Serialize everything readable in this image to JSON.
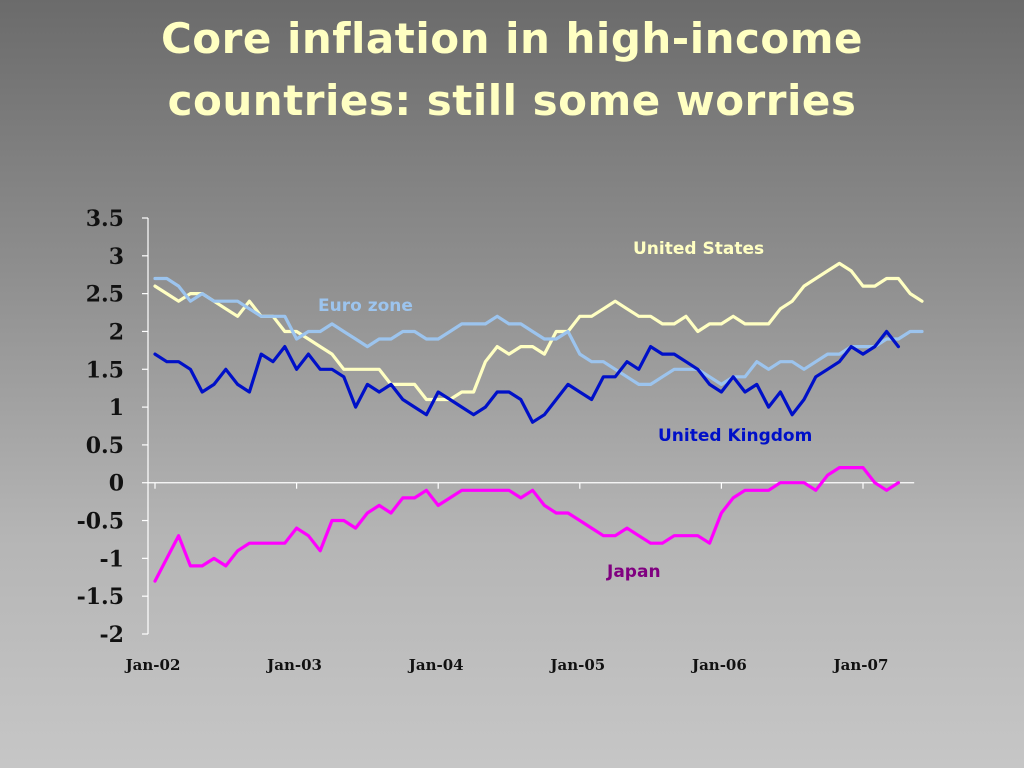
{
  "title": {
    "line1": "Core inflation in high-income",
    "line2": "countries: still some worries"
  },
  "colors": {
    "title": "#ffffc2",
    "us": "#ffffc2",
    "euro": "#9cc4ee",
    "uk": "#0010c8",
    "japan": "#ff00ff",
    "japan_label": "#800080",
    "uk_label": "#0010c8"
  },
  "chart_data": {
    "type": "line",
    "title": "Core inflation in high-income countries: still some worries",
    "xlabel": "",
    "ylabel": "",
    "ylim": [
      -2,
      3.5
    ],
    "yticks": [
      "3.5",
      "3",
      "2.5",
      "2",
      "1.5",
      "1",
      "0.5",
      "0",
      "-0.5",
      "-1",
      "-1.5",
      "-2"
    ],
    "ytick_values": [
      3.5,
      3,
      2.5,
      2,
      1.5,
      1,
      0.5,
      0,
      -0.5,
      -1,
      -1.5,
      -2
    ],
    "xticks": [
      "Jan-02",
      "Jan-03",
      "Jan-04",
      "Jan-05",
      "Jan-06",
      "Jan-07"
    ],
    "x_start": "Jan-02",
    "x_end": "Apr-07",
    "grid": false,
    "series": [
      {
        "name": "United States",
        "color": "#ffffc2",
        "values": [
          2.6,
          2.5,
          2.4,
          2.5,
          2.5,
          2.4,
          2.3,
          2.2,
          2.4,
          2.2,
          2.2,
          2.0,
          2.0,
          1.9,
          1.8,
          1.7,
          1.5,
          1.5,
          1.5,
          1.5,
          1.3,
          1.3,
          1.3,
          1.1,
          1.1,
          1.1,
          1.2,
          1.2,
          1.6,
          1.8,
          1.7,
          1.8,
          1.8,
          1.7,
          2.0,
          2.0,
          2.2,
          2.2,
          2.3,
          2.4,
          2.3,
          2.2,
          2.2,
          2.1,
          2.1,
          2.2,
          2.0,
          2.1,
          2.1,
          2.2,
          2.1,
          2.1,
          2.1,
          2.3,
          2.4,
          2.6,
          2.7,
          2.8,
          2.9,
          2.8,
          2.6,
          2.6,
          2.7,
          2.7,
          2.5,
          2.4
        ]
      },
      {
        "name": "Euro zone",
        "color": "#9cc4ee",
        "values": [
          2.7,
          2.7,
          2.6,
          2.4,
          2.5,
          2.4,
          2.4,
          2.4,
          2.3,
          2.2,
          2.2,
          2.2,
          1.9,
          2.0,
          2.0,
          2.1,
          2.0,
          1.9,
          1.8,
          1.9,
          1.9,
          2.0,
          2.0,
          1.9,
          1.9,
          2.0,
          2.1,
          2.1,
          2.1,
          2.2,
          2.1,
          2.1,
          2.0,
          1.9,
          1.9,
          2.0,
          1.7,
          1.6,
          1.6,
          1.5,
          1.4,
          1.3,
          1.3,
          1.4,
          1.5,
          1.5,
          1.5,
          1.4,
          1.3,
          1.4,
          1.4,
          1.6,
          1.5,
          1.6,
          1.6,
          1.5,
          1.6,
          1.7,
          1.7,
          1.8,
          1.8,
          1.8,
          1.9,
          1.9,
          2.0,
          2.0
        ]
      },
      {
        "name": "United Kingdom",
        "color": "#0010c8",
        "values": [
          1.7,
          1.6,
          1.6,
          1.5,
          1.2,
          1.3,
          1.5,
          1.3,
          1.2,
          1.7,
          1.6,
          1.8,
          1.5,
          1.7,
          1.5,
          1.5,
          1.4,
          1.0,
          1.3,
          1.2,
          1.3,
          1.1,
          1.0,
          0.9,
          1.2,
          1.1,
          1.0,
          0.9,
          1.0,
          1.2,
          1.2,
          1.1,
          0.8,
          0.9,
          1.1,
          1.3,
          1.2,
          1.1,
          1.4,
          1.4,
          1.6,
          1.5,
          1.8,
          1.7,
          1.7,
          1.6,
          1.5,
          1.3,
          1.2,
          1.4,
          1.2,
          1.3,
          1.0,
          1.2,
          0.9,
          1.1,
          1.4,
          1.5,
          1.6,
          1.8,
          1.7,
          1.8,
          2.0,
          1.8
        ]
      },
      {
        "name": "Japan",
        "color": "#ff00ff",
        "values": [
          -1.3,
          -1.0,
          -0.7,
          -1.1,
          -1.1,
          -1.0,
          -1.1,
          -0.9,
          -0.8,
          -0.8,
          -0.8,
          -0.8,
          -0.6,
          -0.7,
          -0.9,
          -0.5,
          -0.5,
          -0.6,
          -0.4,
          -0.3,
          -0.4,
          -0.2,
          -0.2,
          -0.1,
          -0.3,
          -0.2,
          -0.1,
          -0.1,
          -0.1,
          -0.1,
          -0.1,
          -0.2,
          -0.1,
          -0.3,
          -0.4,
          -0.4,
          -0.5,
          -0.6,
          -0.7,
          -0.7,
          -0.6,
          -0.7,
          -0.8,
          -0.8,
          -0.7,
          -0.7,
          -0.7,
          -0.8,
          -0.4,
          -0.2,
          -0.1,
          -0.1,
          -0.1,
          0.0,
          0.0,
          0.0,
          -0.1,
          0.1,
          0.2,
          0.2,
          0.2,
          0.0,
          -0.1,
          0.0
        ]
      }
    ],
    "annotations": {
      "us": "United States",
      "euro": "Euro zone",
      "uk": "United Kingdom",
      "japan": "Japan"
    }
  }
}
